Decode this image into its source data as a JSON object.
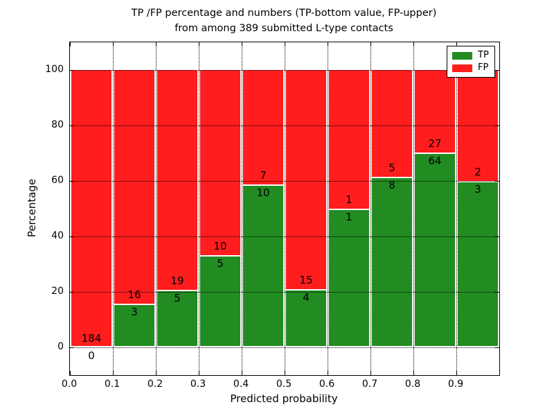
{
  "figure": {
    "title_line1": "TP /FP percentage and numbers (TP-bottom value, FP-upper)",
    "title_line2": "from among 389 submitted L-type contacts",
    "xlabel": "Predicted probability",
    "ylabel": "Percentage"
  },
  "legend": {
    "position": "upper right",
    "entries": [
      {
        "label": "TP",
        "color": "#228B22"
      },
      {
        "label": "FP",
        "color": "#FF1D1D"
      }
    ]
  },
  "chart_data": {
    "type": "bar",
    "stacked": true,
    "title": "TP /FP percentage and numbers (TP-bottom value, FP-upper)\nfrom among 389 submitted L-type contacts",
    "xlabel": "Predicted probability",
    "ylabel": "Percentage",
    "xlim": [
      0.0,
      1.0
    ],
    "ylim": [
      -10,
      110
    ],
    "grid": "dotted, drawn above bars",
    "bar_edge_color": "#ffffff",
    "total_contacts": 389,
    "bin_edges": [
      0.0,
      0.1,
      0.2,
      0.3,
      0.4,
      0.5,
      0.6,
      0.7,
      0.8,
      0.9,
      1.0
    ],
    "xticks": [
      "0.0",
      "0.1",
      "0.2",
      "0.3",
      "0.4",
      "0.5",
      "0.6",
      "0.7",
      "0.8",
      "0.9"
    ],
    "yticks": [
      0,
      20,
      40,
      60,
      80,
      100
    ],
    "series": [
      {
        "name": "TP",
        "color": "#228B22",
        "counts": [
          0,
          3,
          5,
          5,
          10,
          4,
          1,
          8,
          64,
          3
        ],
        "percentages": [
          0,
          15.79,
          20.83,
          33.33,
          58.82,
          21.05,
          50.0,
          61.54,
          70.33,
          60.0
        ]
      },
      {
        "name": "FP",
        "color": "#FF1D1D",
        "counts": [
          184,
          16,
          19,
          10,
          7,
          15,
          1,
          5,
          27,
          2
        ],
        "percentages": [
          100,
          84.21,
          79.17,
          66.67,
          41.18,
          78.95,
          50.0,
          38.46,
          29.67,
          40.0
        ]
      }
    ]
  }
}
